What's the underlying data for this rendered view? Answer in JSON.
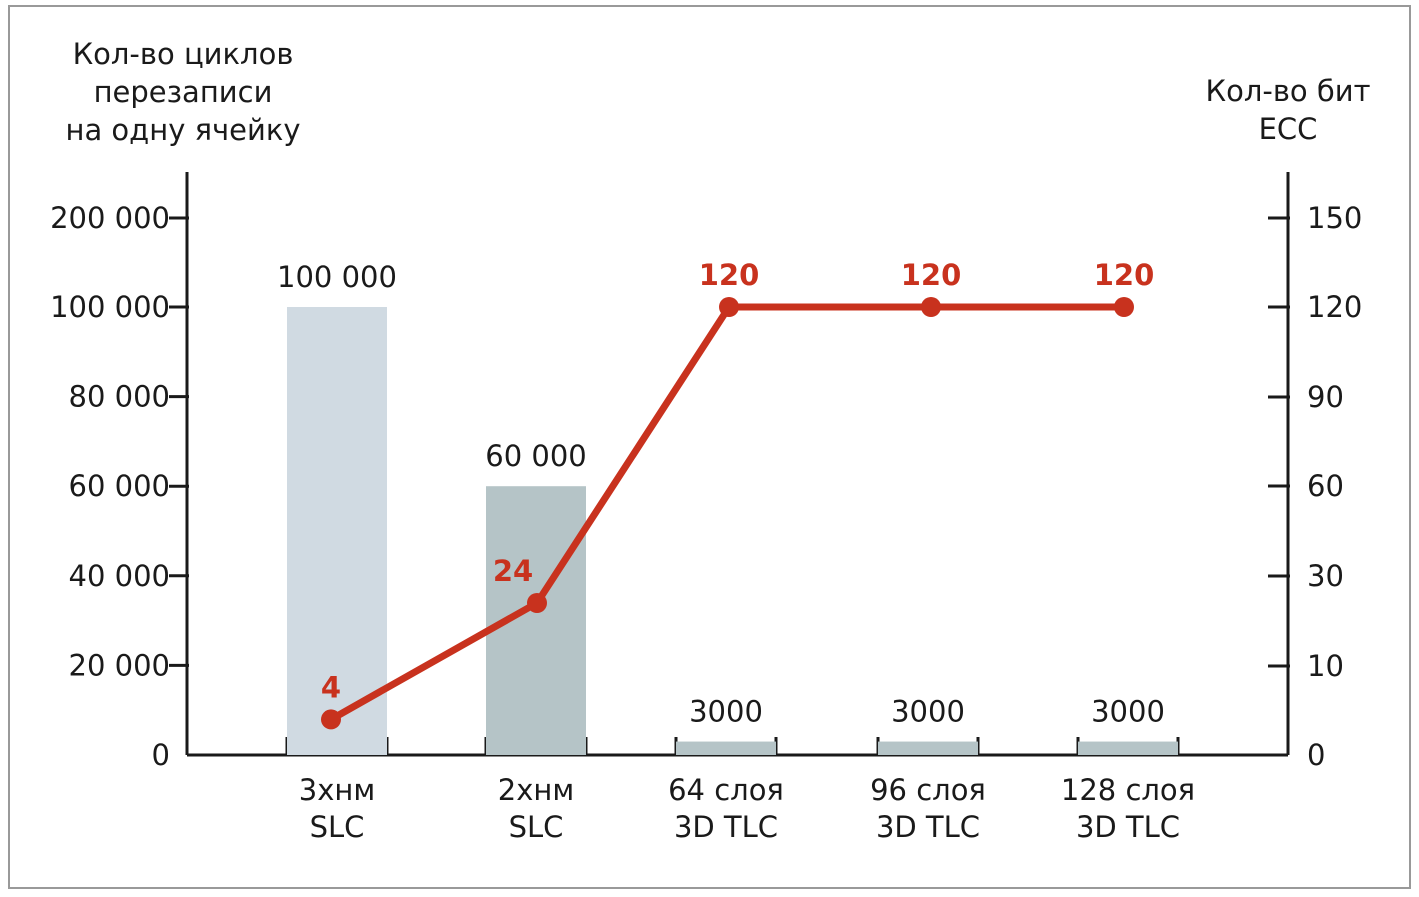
{
  "chart_data": {
    "type": "bar",
    "categories": [
      [
        "3xнм",
        "SLC"
      ],
      [
        "2xнм",
        "SLC"
      ],
      [
        "64 слоя",
        "3D TLC"
      ],
      [
        "96 слоя",
        "3D TLC"
      ],
      [
        "128 слоя",
        "3D TLC"
      ]
    ],
    "left_axis": {
      "title": [
        "Кол-во циклов",
        "перезаписи",
        "на одну ячейку"
      ],
      "ticks": [
        {
          "value": 0,
          "label": "0"
        },
        {
          "value": 20000,
          "label": "20 000"
        },
        {
          "value": 40000,
          "label": "40 000"
        },
        {
          "value": 60000,
          "label": "60 000"
        },
        {
          "value": 80000,
          "label": "80 000"
        },
        {
          "value": 100000,
          "label": "100 000"
        },
        {
          "value": 200000,
          "label": "200 000"
        }
      ],
      "scale": "piecewise: 0–100 000 linear, break to 200 000"
    },
    "right_axis": {
      "title": [
        "Кол-во бит",
        "ECC"
      ],
      "ticks": [
        {
          "value": 0,
          "label": "0"
        },
        {
          "value": 10,
          "label": "10"
        },
        {
          "value": 30,
          "label": "30"
        },
        {
          "value": 60,
          "label": "60"
        },
        {
          "value": 90,
          "label": "90"
        },
        {
          "value": 120,
          "label": "120"
        },
        {
          "value": 150,
          "label": "150"
        }
      ]
    },
    "bars": {
      "values": [
        100000,
        60000,
        3000,
        3000,
        3000
      ],
      "labels": [
        "100 000",
        "60 000",
        "3000",
        "3000",
        "3000"
      ],
      "colors": [
        "#d0dae2",
        "#b5c4c7",
        "#b5c4c7",
        "#b5c4c7",
        "#b5c4c7"
      ]
    },
    "line": {
      "values": [
        4,
        24,
        120,
        120,
        120
      ],
      "labels": [
        "4",
        "24",
        "120",
        "120",
        "120"
      ],
      "color": "#c8321e"
    },
    "grid": false,
    "legend": "none"
  }
}
